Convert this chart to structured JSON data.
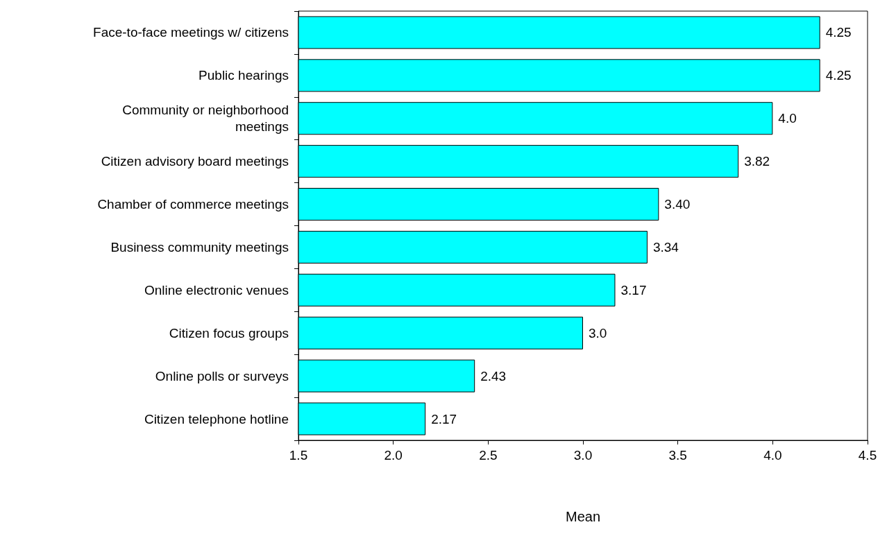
{
  "chart_data": {
    "type": "bar",
    "orientation": "horizontal",
    "xlabel": "Mean",
    "categories": [
      "Face-to-face meetings w/ citizens",
      "Public hearings",
      "Community or neighborhood\nmeetings",
      "Citizen advisory board meetings",
      "Chamber of commerce meetings",
      "Business community meetings",
      "Online electronic venues",
      "Citizen focus groups",
      "Online polls or surveys",
      "Citizen telephone hotline"
    ],
    "values": [
      4.25,
      4.25,
      4.0,
      3.82,
      3.4,
      3.34,
      3.17,
      3.0,
      2.43,
      2.17
    ],
    "value_labels": [
      "4.25",
      "4.25",
      "4.0",
      "3.82",
      "3.40",
      "3.34",
      "3.17",
      "3.0",
      "2.43",
      "2.17"
    ],
    "color": "#00ffff",
    "xlim": [
      1.5,
      4.5
    ],
    "xticks": [
      {
        "value": 1.5,
        "label": "1.5"
      },
      {
        "value": 2,
        "label": "2.0"
      },
      {
        "value": 2.5,
        "label": "2.5"
      },
      {
        "value": 3,
        "label": "3.0"
      },
      {
        "value": 3.5,
        "label": "3.5"
      },
      {
        "value": 4,
        "label": "4.0"
      },
      {
        "value": 4.5,
        "label": "4.5"
      }
    ],
    "grid": false
  }
}
